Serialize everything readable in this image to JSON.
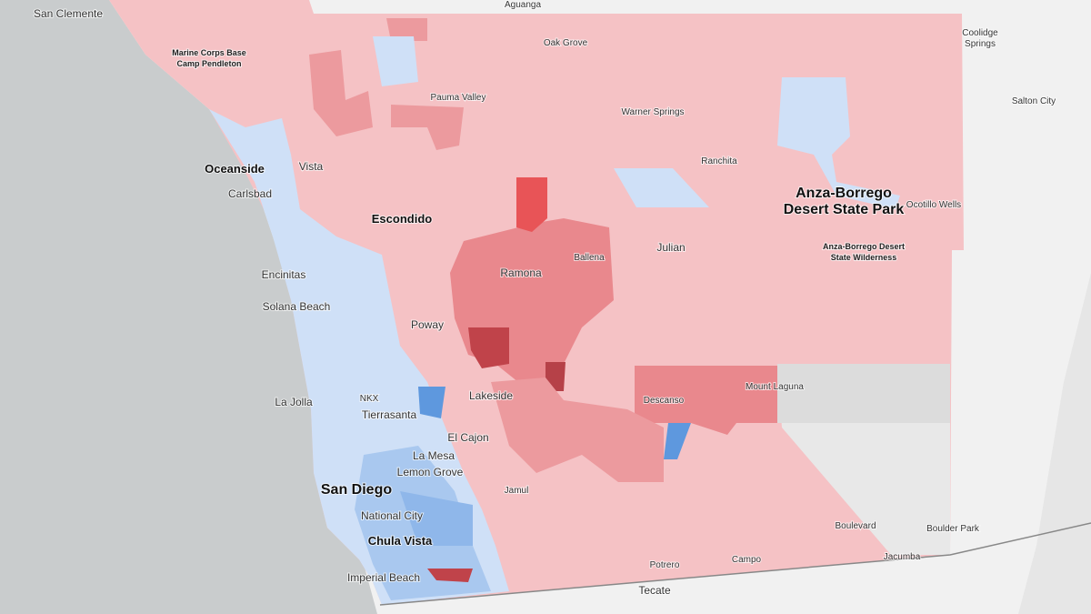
{
  "map": {
    "labels": [
      {
        "lines": [
          "San Clemente"
        ]
      },
      {
        "lines": [
          "Aguanga"
        ]
      },
      {
        "lines": [
          "Coolidge",
          "Springs"
        ]
      },
      {
        "lines": [
          "Oak Grove"
        ]
      },
      {
        "lines": [
          "Marine Corps Base",
          "Camp Pendleton"
        ]
      },
      {
        "lines": [
          "Pauma Valley"
        ]
      },
      {
        "lines": [
          "Warner Springs"
        ]
      },
      {
        "lines": [
          "Salton City"
        ]
      },
      {
        "lines": [
          "Oceanside"
        ]
      },
      {
        "lines": [
          "Vista"
        ]
      },
      {
        "lines": [
          "Ranchita"
        ]
      },
      {
        "lines": [
          "Carlsbad"
        ]
      },
      {
        "lines": [
          "Anza-Borrego",
          "Desert State Park"
        ]
      },
      {
        "lines": [
          "Ocotillo Wells"
        ]
      },
      {
        "lines": [
          "Escondido"
        ]
      },
      {
        "lines": [
          "Julian"
        ]
      },
      {
        "lines": [
          "Ballena"
        ]
      },
      {
        "lines": [
          "Ramona"
        ]
      },
      {
        "lines": [
          "Anza-Borrego Desert",
          "State Wilderness"
        ]
      },
      {
        "lines": [
          "Encinitas"
        ]
      },
      {
        "lines": [
          "Solana Beach"
        ]
      },
      {
        "lines": [
          "Poway"
        ]
      },
      {
        "lines": [
          "NKX"
        ]
      },
      {
        "lines": [
          "La Jolla"
        ]
      },
      {
        "lines": [
          "Mount Laguna"
        ]
      },
      {
        "lines": [
          "Descanso"
        ]
      },
      {
        "lines": [
          "Lakeside"
        ]
      },
      {
        "lines": [
          "Tierrasanta"
        ]
      },
      {
        "lines": [
          "El Cajon"
        ]
      },
      {
        "lines": [
          "La Mesa"
        ]
      },
      {
        "lines": [
          "Lemon Grove"
        ]
      },
      {
        "lines": [
          "San Diego"
        ]
      },
      {
        "lines": [
          "Jamul"
        ]
      },
      {
        "lines": [
          "National City"
        ]
      },
      {
        "lines": [
          "Chula Vista"
        ]
      },
      {
        "lines": [
          "Boulevard"
        ]
      },
      {
        "lines": [
          "Boulder Park"
        ]
      },
      {
        "lines": [
          "Jacumba"
        ]
      },
      {
        "lines": [
          "Potrero"
        ]
      },
      {
        "lines": [
          "Campo"
        ]
      },
      {
        "lines": [
          "Imperial Beach"
        ]
      },
      {
        "lines": [
          "Tecate"
        ]
      }
    ]
  }
}
